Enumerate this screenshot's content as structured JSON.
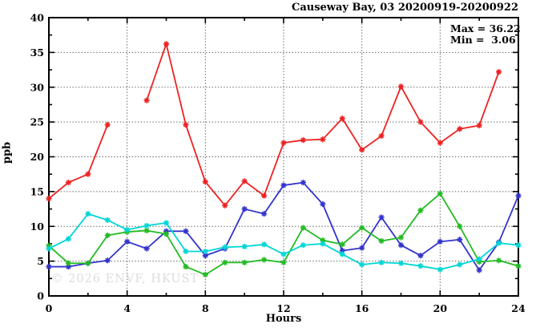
{
  "title": "Causeway Bay, 03 20200919-20200922",
  "stats": {
    "max_label": "Max = 36.22",
    "min_label": "Min =  3.06"
  },
  "watermark": "© 2026 ENVF, HKUST",
  "chart_data": {
    "type": "line",
    "title": "Causeway Bay, 03 20200919-20200922",
    "xlabel": "Hours",
    "ylabel": "ppb",
    "xlim": [
      0,
      24
    ],
    "ylim": [
      0,
      40
    ],
    "x_major_ticks": [
      0,
      4,
      8,
      12,
      16,
      20,
      24
    ],
    "x_minor_ticks": [
      2,
      6,
      10,
      14,
      18,
      22
    ],
    "y_major_ticks": [
      0,
      5,
      10,
      15,
      20,
      25,
      30,
      35,
      40
    ],
    "y_minor_ticks": [
      2.5,
      7.5,
      12.5,
      17.5,
      22.5,
      27.5,
      32.5,
      37.5
    ],
    "grid": true,
    "legend": "none",
    "marker": "star",
    "annotations": {
      "max": 36.22,
      "min": 3.06
    },
    "x": [
      0,
      1,
      2,
      3,
      4,
      5,
      6,
      7,
      8,
      9,
      10,
      11,
      12,
      13,
      14,
      15,
      16,
      17,
      18,
      19,
      20,
      21,
      22,
      23,
      24
    ],
    "series": [
      {
        "name": "series-red",
        "color": "#ee2222",
        "values": [
          14.0,
          16.3,
          17.5,
          24.6,
          null,
          28.1,
          36.22,
          24.6,
          16.4,
          13.0,
          16.5,
          14.4,
          22.0,
          22.4,
          22.5,
          25.5,
          21.0,
          23.0,
          30.1,
          25.0,
          22.0,
          24.0,
          24.5,
          32.2,
          null
        ]
      },
      {
        "name": "series-blue",
        "color": "#3333cc",
        "values": [
          4.2,
          4.2,
          4.7,
          5.1,
          7.8,
          6.8,
          9.3,
          9.3,
          5.8,
          6.8,
          12.5,
          11.8,
          15.9,
          16.3,
          13.2,
          6.5,
          6.9,
          11.3,
          7.3,
          5.8,
          7.8,
          8.1,
          3.7,
          7.7,
          14.4
        ]
      },
      {
        "name": "series-green",
        "color": "#22bb22",
        "values": [
          7.2,
          4.7,
          4.7,
          8.7,
          9.2,
          9.4,
          8.9,
          4.2,
          3.06,
          4.8,
          4.8,
          5.2,
          4.8,
          9.8,
          8.0,
          7.4,
          9.8,
          7.9,
          8.4,
          12.3,
          14.7,
          10.0,
          4.9,
          5.1,
          4.3
        ]
      },
      {
        "name": "series-cyan",
        "color": "#00d6d6",
        "values": [
          6.8,
          8.2,
          11.8,
          10.9,
          9.5,
          10.1,
          10.5,
          6.4,
          6.4,
          7.0,
          7.1,
          7.4,
          6.0,
          7.3,
          7.5,
          6.0,
          4.5,
          4.8,
          4.7,
          4.3,
          3.8,
          4.5,
          5.3,
          7.6,
          7.3
        ]
      }
    ]
  }
}
